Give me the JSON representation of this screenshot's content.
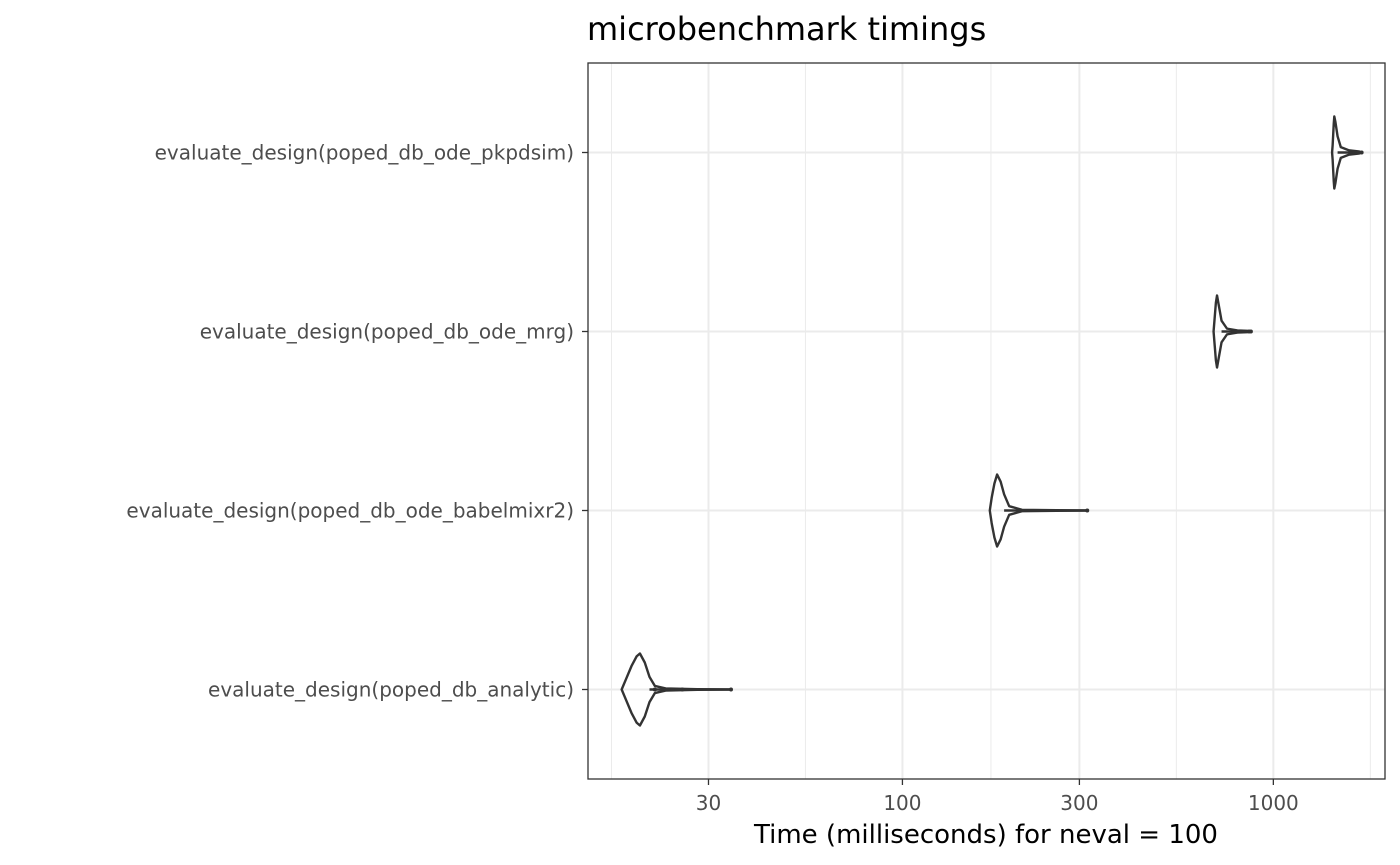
{
  "chart_data": {
    "type": "violin",
    "title": "microbenchmark timings",
    "xlabel": "Time (milliseconds) for neval = 100",
    "ylabel": "",
    "x_scale": "log10",
    "xlim": [
      14.2,
      2000
    ],
    "x_ticks": [
      30,
      100,
      300,
      1000
    ],
    "x_tick_labels": [
      "30",
      "100",
      "300",
      "1000"
    ],
    "categories": [
      "evaluate_design(poped_db_ode_pkpdsim)",
      "evaluate_design(poped_db_ode_mrg)",
      "evaluate_design(poped_db_ode_babelmixr2)",
      "evaluate_design(poped_db_analytic)"
    ],
    "series": [
      {
        "min": 1440,
        "max": 1730,
        "mode": 1460,
        "outliers": [
          1650,
          1680,
          1700,
          1730
        ],
        "profile": [
          [
            1440,
            0
          ],
          [
            1445,
            0.2
          ],
          [
            1450,
            0.5
          ],
          [
            1455,
            0.8
          ],
          [
            1460,
            1.0
          ],
          [
            1470,
            0.85
          ],
          [
            1490,
            0.45
          ],
          [
            1520,
            0.15
          ],
          [
            1600,
            0.06
          ],
          [
            1700,
            0.03
          ],
          [
            1730,
            0
          ]
        ]
      },
      {
        "min": 690,
        "max": 870,
        "mode": 705,
        "outliers": [
          860,
          870
        ],
        "profile": [
          [
            690,
            0
          ],
          [
            695,
            0.4
          ],
          [
            700,
            0.8
          ],
          [
            705,
            1.0
          ],
          [
            712,
            0.75
          ],
          [
            725,
            0.3
          ],
          [
            750,
            0.08
          ],
          [
            800,
            0.03
          ],
          [
            850,
            0.02
          ],
          [
            870,
            0
          ]
        ]
      },
      {
        "min": 172,
        "max": 315,
        "mode": 180,
        "outliers": [
          315
        ],
        "profile": [
          [
            172,
            0
          ],
          [
            174,
            0.35
          ],
          [
            177,
            0.75
          ],
          [
            180,
            1.0
          ],
          [
            184,
            0.8
          ],
          [
            188,
            0.45
          ],
          [
            194,
            0.12
          ],
          [
            210,
            0.02
          ],
          [
            260,
            0.01
          ],
          [
            315,
            0
          ]
        ]
      },
      {
        "min": 17.5,
        "max": 34.5,
        "mode": 19.5,
        "outliers": [
          21.5,
          24,
          25.5,
          34.5
        ],
        "profile": [
          [
            17.5,
            0
          ],
          [
            18.0,
            0.3
          ],
          [
            18.6,
            0.65
          ],
          [
            19.2,
            0.92
          ],
          [
            19.6,
            1.0
          ],
          [
            20.2,
            0.75
          ],
          [
            20.8,
            0.35
          ],
          [
            21.5,
            0.1
          ],
          [
            23,
            0.03
          ],
          [
            28,
            0.01
          ],
          [
            34.5,
            0
          ]
        ]
      }
    ],
    "grid": true,
    "legend": "none"
  }
}
